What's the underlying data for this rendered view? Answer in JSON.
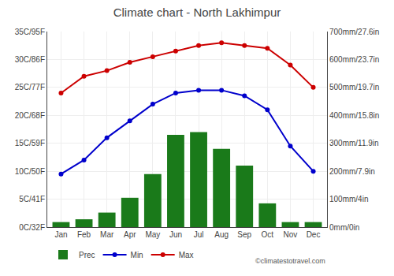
{
  "chart_data": {
    "type": "line",
    "title": "Climate chart - North Lakhimpur",
    "categories": [
      "Jan",
      "Feb",
      "Mar",
      "Apr",
      "May",
      "Jun",
      "Jul",
      "Aug",
      "Sep",
      "Oct",
      "Nov",
      "Dec"
    ],
    "series": [
      {
        "name": "Prec",
        "type": "bar",
        "axis": "y2",
        "color": "#1a7a1a",
        "values": [
          18,
          28,
          52,
          105,
          190,
          330,
          340,
          280,
          220,
          85,
          18,
          18
        ]
      },
      {
        "name": "Min",
        "type": "line",
        "marker": "circle",
        "color": "#0000cc",
        "values": [
          9.5,
          12,
          16,
          19,
          22,
          24,
          24.5,
          24.5,
          23.5,
          21,
          14.5,
          10
        ]
      },
      {
        "name": "Max",
        "type": "line",
        "marker": "circle",
        "color": "#cc0000",
        "values": [
          24,
          27,
          28,
          29.5,
          30.5,
          31.5,
          32.5,
          33,
          32.5,
          32,
          29,
          25
        ]
      }
    ],
    "ylim": [
      0,
      35
    ],
    "yticks": [
      {
        "value": 0,
        "label": "0C/32F"
      },
      {
        "value": 5,
        "label": "5C/41F"
      },
      {
        "value": 10,
        "label": "10C/50F"
      },
      {
        "value": 15,
        "label": "15C/59F"
      },
      {
        "value": 20,
        "label": "20C/68F"
      },
      {
        "value": 25,
        "label": "25C/77F"
      },
      {
        "value": 30,
        "label": "30C/86F"
      },
      {
        "value": 35,
        "label": "35C/95F"
      }
    ],
    "y2lim": [
      0,
      700
    ],
    "y2ticks": [
      {
        "value": 0,
        "label": "0mm/0in"
      },
      {
        "value": 100,
        "label": "100mm/4in"
      },
      {
        "value": 200,
        "label": "200mm/7.9in"
      },
      {
        "value": 300,
        "label": "300mm/11.9in"
      },
      {
        "value": 400,
        "label": "400mm/15.8in"
      },
      {
        "value": 500,
        "label": "500mm/19.7in"
      },
      {
        "value": 600,
        "label": "600mm/23.7in"
      },
      {
        "value": 700,
        "label": "700mm/27.6in"
      }
    ],
    "grid": true,
    "legend": "lower left",
    "annotations": [
      "©climatestotravel.com"
    ]
  }
}
